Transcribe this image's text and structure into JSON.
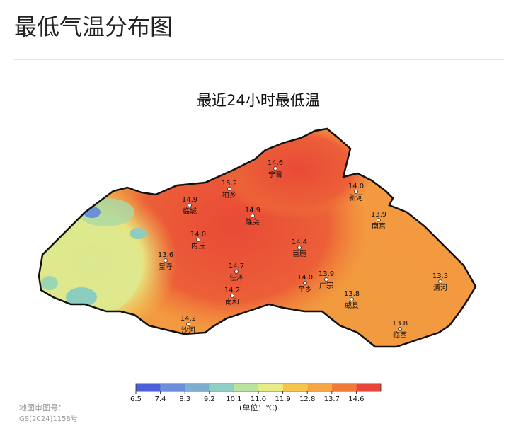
{
  "header": {
    "title": "最低气温分布图"
  },
  "map": {
    "title": "最近24小时最低温",
    "stations": [
      {
        "value": "14.6",
        "name": "宁晋"
      },
      {
        "value": "15.2",
        "name": "柏乡"
      },
      {
        "value": "14.9",
        "name": "临城"
      },
      {
        "value": "14.9",
        "name": "隆尧"
      },
      {
        "value": "14.0",
        "name": "新河"
      },
      {
        "value": "13.9",
        "name": "南宫"
      },
      {
        "value": "14.0",
        "name": "内丘"
      },
      {
        "value": "14.4",
        "name": "巨鹿"
      },
      {
        "value": "13.6",
        "name": "皇寺"
      },
      {
        "value": "14.7",
        "name": "任泽"
      },
      {
        "value": "14.0",
        "name": "平乡"
      },
      {
        "value": "13.9",
        "name": "广宗"
      },
      {
        "value": "13.3",
        "name": "清河"
      },
      {
        "value": "14.2",
        "name": "南和"
      },
      {
        "value": "13.8",
        "name": "威县"
      },
      {
        "value": "14.2",
        "name": "沙河"
      },
      {
        "value": "13.8",
        "name": "临西"
      }
    ],
    "legend": {
      "ticks": [
        "6.5",
        "7.4",
        "8.3",
        "9.2",
        "10.1",
        "11.0",
        "11.9",
        "12.8",
        "13.7",
        "14.6"
      ],
      "colors": [
        "#4b5fd8",
        "#6b8fd8",
        "#7cafcf",
        "#8ed0c3",
        "#b9e49d",
        "#e8ec88",
        "#f6c64c",
        "#f5a744",
        "#f07a38",
        "#e8463a"
      ],
      "unit": "(单位：℃)"
    }
  },
  "footer": {
    "label": "地图审图号：",
    "number": "GS(2024)1158号"
  }
}
